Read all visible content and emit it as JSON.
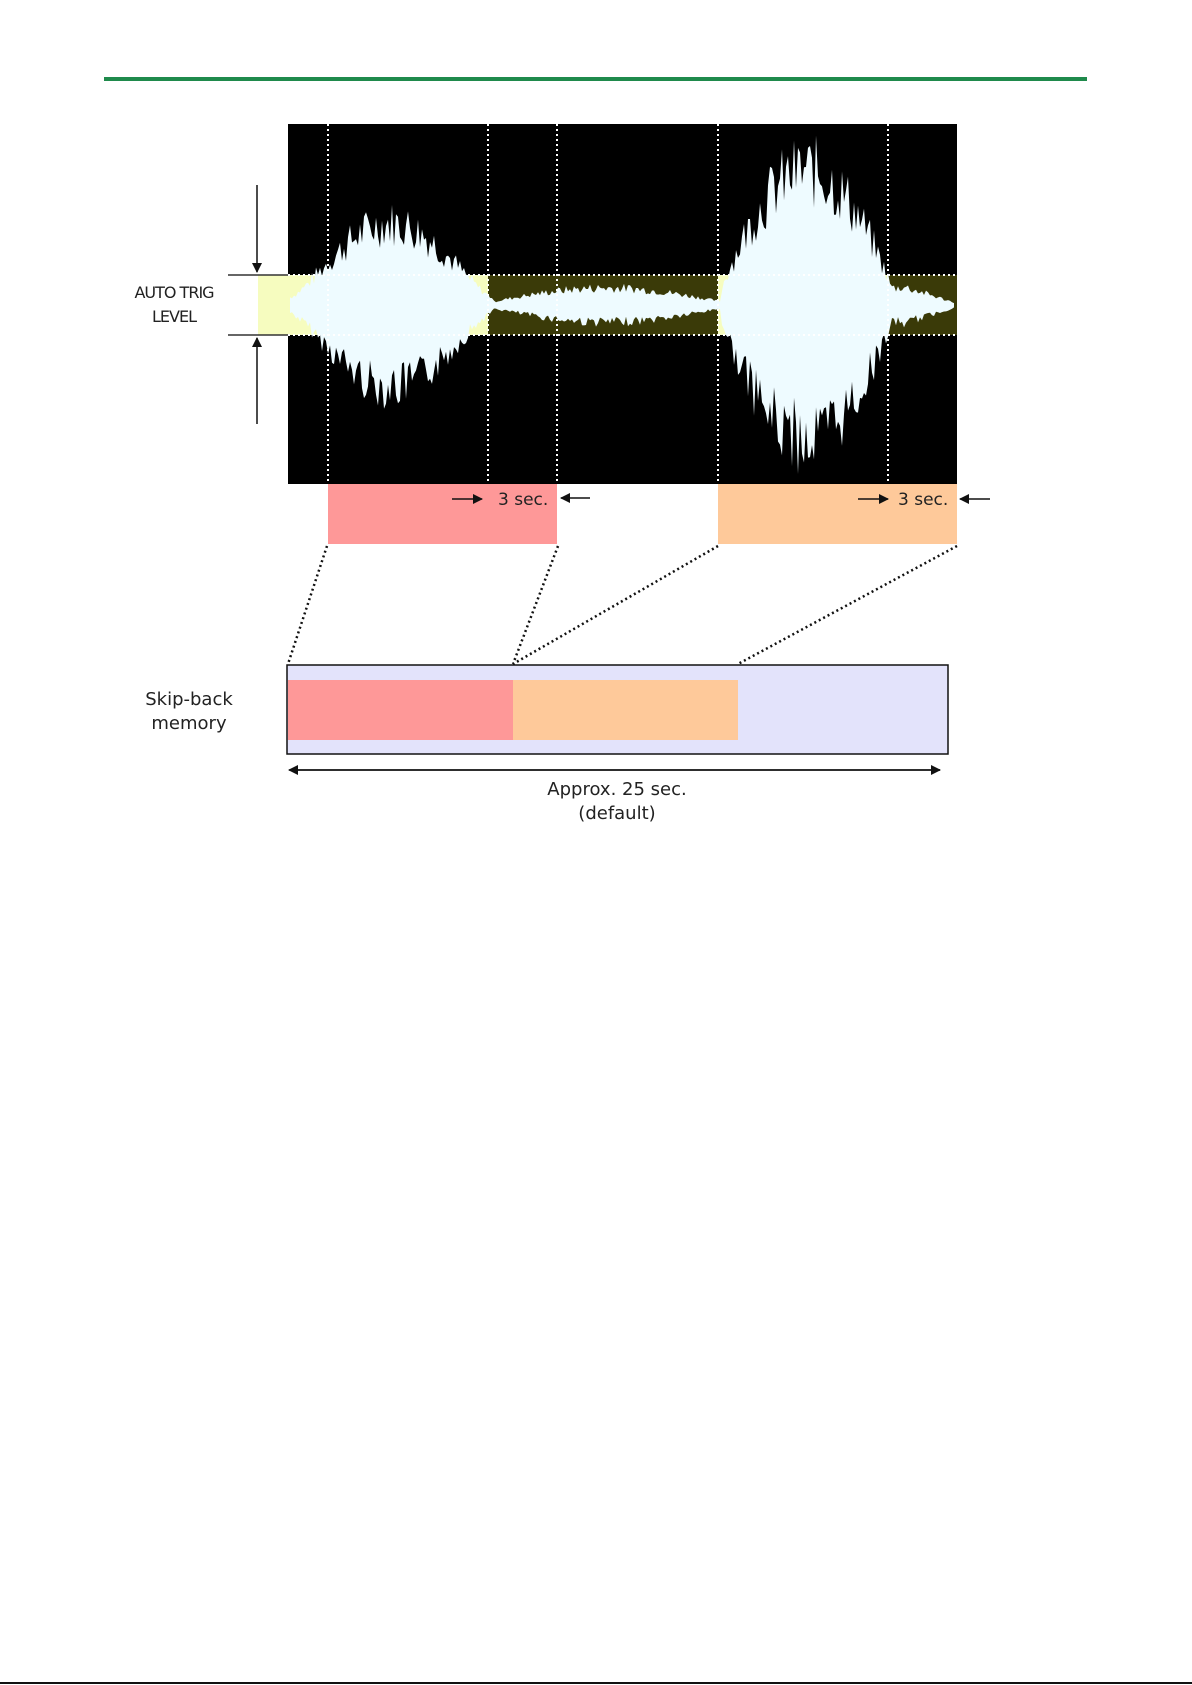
{
  "diagram": {
    "trig_label_line1": "AUTO TRIG",
    "trig_label_line2": "LEVEL",
    "post_trigger_label_1": "3 sec.",
    "post_trigger_label_2": "3 sec.",
    "memory_label_line1": "Skip-back",
    "memory_label_line2": "memory",
    "duration_label_line1": "Approx. 25 sec.",
    "duration_label_line2": "(default)"
  },
  "colors": {
    "header_rule": "#1f8a4c",
    "waveform_bg": "#000000",
    "waveform": "#eefbff",
    "trig_band": "#f6fcbf",
    "segment_1": "#fe9898",
    "segment_2": "#fec99a",
    "memory_bg": "#e3e3fb"
  }
}
